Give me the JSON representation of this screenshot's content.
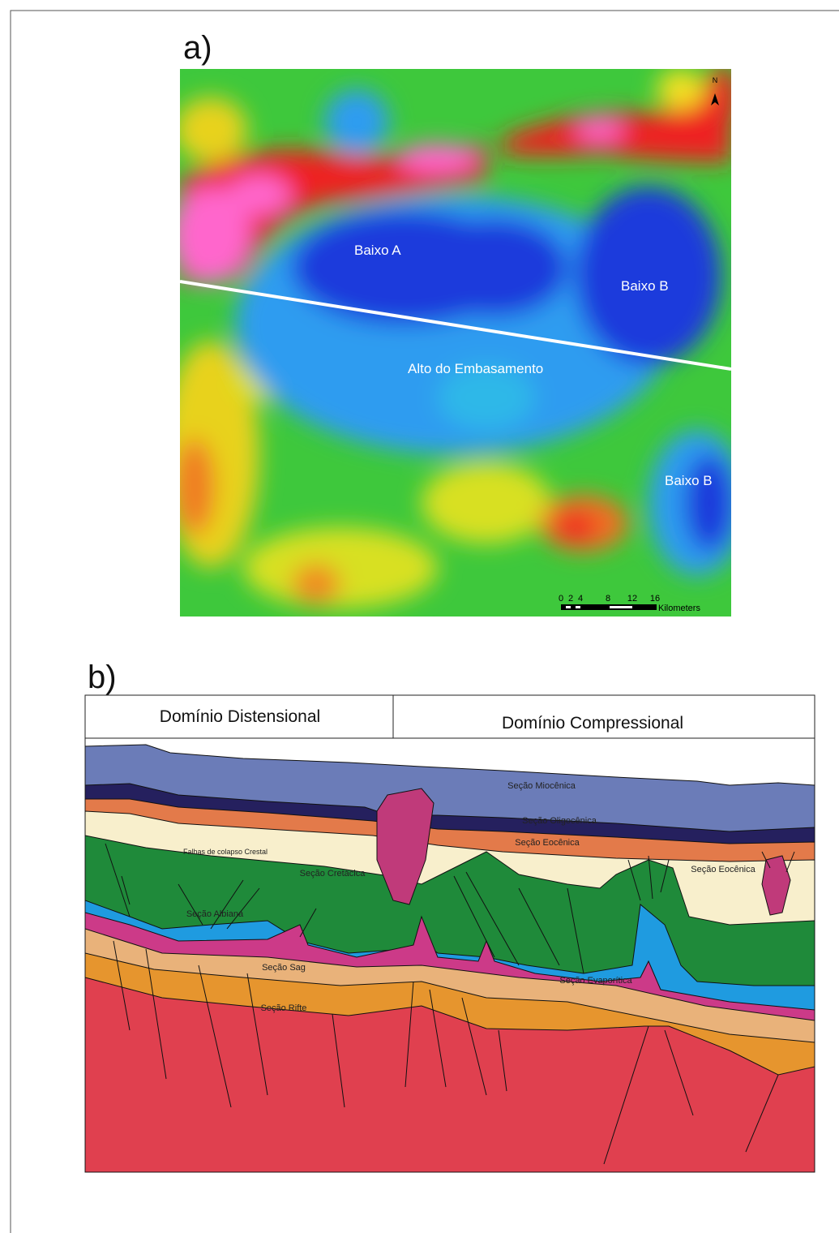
{
  "panel_a": {
    "label": "a)",
    "north": "N",
    "labels": [
      "Baixo A",
      "Baixo B",
      "Alto do Embasamento",
      "Baixo B"
    ],
    "scale_bar": {
      "ticks": [
        "0",
        "2",
        "4",
        "8",
        "12",
        "16"
      ],
      "unit": "Kilometers"
    }
  },
  "panel_b": {
    "label": "b)",
    "domains": [
      "Domínio Distensional",
      "Domínio Compressional"
    ],
    "layers": [
      "Seção Miocênica",
      "Seção Oligocênica",
      "Seção Eocênica",
      "Seção Eocênica",
      "Seção Cretácica",
      "Seção Albiana",
      "Seção Sag",
      "Seção Evaporítica",
      "Seção Rifte"
    ],
    "annotation": "Falhas de colapso Crestal"
  }
}
